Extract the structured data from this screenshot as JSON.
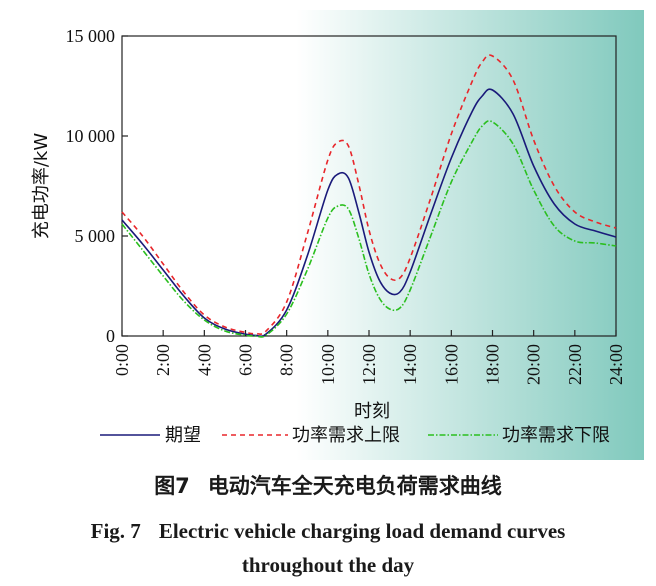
{
  "colors": {
    "panel_left": "#ffffff",
    "panel_right": "#80c9bd",
    "expected": "#1a1a7a",
    "upper": "#e8262b",
    "lower": "#2bbf1f",
    "axis": "#222222"
  },
  "chart_data": {
    "type": "line",
    "xlabel": "时刻",
    "ylabel": "充电功率/kW",
    "ylim": [
      0,
      15000
    ],
    "yticks": [
      0,
      5000,
      10000,
      15000
    ],
    "ytick_labels": [
      "0",
      "5 000",
      "10 000",
      "15 000"
    ],
    "xlim": [
      0,
      24
    ],
    "xticks": [
      0,
      2,
      4,
      6,
      8,
      10,
      12,
      14,
      16,
      18,
      20,
      22,
      24
    ],
    "xtick_labels": [
      "0:00",
      "2:00",
      "4:00",
      "6:00",
      "8:00",
      "10:00",
      "12:00",
      "14:00",
      "16:00",
      "18:00",
      "20:00",
      "22:00",
      "24:00"
    ],
    "legend_position": "bottom",
    "x": [
      0,
      1,
      2,
      3,
      4,
      5,
      6,
      6.5,
      7,
      8,
      9,
      10,
      10.5,
      11,
      11.5,
      12,
      12.5,
      13,
      13.5,
      14,
      15,
      16,
      17,
      17.5,
      18,
      19,
      20,
      21,
      22,
      23,
      24
    ],
    "series": [
      {
        "name": "期望",
        "style": "solid",
        "values": [
          5800,
          4600,
          3300,
          2000,
          900,
          350,
          90,
          30,
          100,
          1300,
          4000,
          7300,
          8100,
          7900,
          6200,
          4200,
          2800,
          2150,
          2200,
          3200,
          6100,
          8900,
          11200,
          12000,
          12300,
          11100,
          8500,
          6600,
          5600,
          5250,
          4950
        ]
      },
      {
        "name": "功率需求上限",
        "style": "dashed",
        "values": [
          6200,
          5000,
          3600,
          2200,
          1050,
          450,
          180,
          120,
          250,
          1700,
          5100,
          8800,
          9700,
          9500,
          7600,
          5300,
          3700,
          2900,
          2900,
          3900,
          6900,
          10100,
          12700,
          13700,
          14000,
          12800,
          9800,
          7500,
          6200,
          5700,
          5400
        ]
      },
      {
        "name": "功率需求下限",
        "style": "dashdot",
        "values": [
          5600,
          4300,
          3000,
          1750,
          800,
          250,
          40,
          0,
          40,
          1100,
          3300,
          5900,
          6500,
          6350,
          4900,
          3100,
          1900,
          1350,
          1400,
          2300,
          5000,
          7700,
          9700,
          10500,
          10700,
          9600,
          7300,
          5500,
          4750,
          4650,
          4500
        ]
      }
    ]
  },
  "caption": {
    "figure_cn": "图7",
    "title_cn": "电动汽车全天充电负荷需求曲线",
    "figure_en": "Fig. 7",
    "title_en_line1": "Electric vehicle charging load demand curves",
    "title_en_line2": "throughout the day"
  }
}
